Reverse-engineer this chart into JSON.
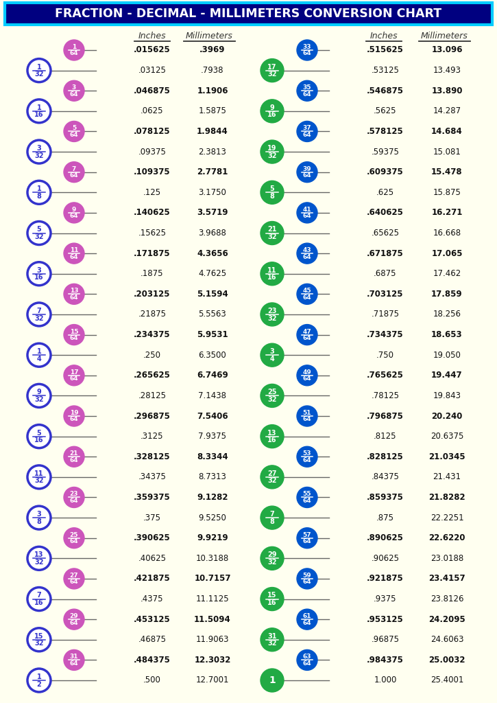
{
  "title": "FRACTION - DECIMAL - MILLIMETERS CONVERSION CHART",
  "title_bg": "#000080",
  "title_fg": "#ffffff",
  "title_border": "#00ccff",
  "bg_color": "#fffff0",
  "left_rows": [
    {
      "num": 1,
      "den": 64,
      "dec": ".015625",
      "mm": ".3969",
      "bold": true,
      "circle64": true
    },
    {
      "num": 1,
      "den": 32,
      "dec": ".03125",
      "mm": ".7938",
      "bold": false,
      "circle64": false
    },
    {
      "num": 3,
      "den": 64,
      "dec": ".046875",
      "mm": "1.1906",
      "bold": true,
      "circle64": true
    },
    {
      "num": 1,
      "den": 16,
      "dec": ".0625",
      "mm": "1.5875",
      "bold": false,
      "circle64": false
    },
    {
      "num": 5,
      "den": 64,
      "dec": ".078125",
      "mm": "1.9844",
      "bold": true,
      "circle64": true
    },
    {
      "num": 3,
      "den": 32,
      "dec": ".09375",
      "mm": "2.3813",
      "bold": false,
      "circle64": false
    },
    {
      "num": 7,
      "den": 64,
      "dec": ".109375",
      "mm": "2.7781",
      "bold": true,
      "circle64": true
    },
    {
      "num": 1,
      "den": 8,
      "dec": ".125",
      "mm": "3.1750",
      "bold": false,
      "circle64": false
    },
    {
      "num": 9,
      "den": 64,
      "dec": ".140625",
      "mm": "3.5719",
      "bold": true,
      "circle64": true
    },
    {
      "num": 5,
      "den": 32,
      "dec": ".15625",
      "mm": "3.9688",
      "bold": false,
      "circle64": false
    },
    {
      "num": 11,
      "den": 64,
      "dec": ".171875",
      "mm": "4.3656",
      "bold": true,
      "circle64": true
    },
    {
      "num": 3,
      "den": 16,
      "dec": ".1875",
      "mm": "4.7625",
      "bold": false,
      "circle64": false
    },
    {
      "num": 13,
      "den": 64,
      "dec": ".203125",
      "mm": "5.1594",
      "bold": true,
      "circle64": true
    },
    {
      "num": 7,
      "den": 32,
      "dec": ".21875",
      "mm": "5.5563",
      "bold": false,
      "circle64": false
    },
    {
      "num": 15,
      "den": 64,
      "dec": ".234375",
      "mm": "5.9531",
      "bold": true,
      "circle64": true
    },
    {
      "num": 1,
      "den": 4,
      "dec": ".250",
      "mm": "6.3500",
      "bold": false,
      "circle64": false
    },
    {
      "num": 17,
      "den": 64,
      "dec": ".265625",
      "mm": "6.7469",
      "bold": true,
      "circle64": true
    },
    {
      "num": 9,
      "den": 32,
      "dec": ".28125",
      "mm": "7.1438",
      "bold": false,
      "circle64": false
    },
    {
      "num": 19,
      "den": 64,
      "dec": ".296875",
      "mm": "7.5406",
      "bold": true,
      "circle64": true
    },
    {
      "num": 5,
      "den": 16,
      "dec": ".3125",
      "mm": "7.9375",
      "bold": false,
      "circle64": false
    },
    {
      "num": 21,
      "den": 64,
      "dec": ".328125",
      "mm": "8.3344",
      "bold": true,
      "circle64": true
    },
    {
      "num": 11,
      "den": 32,
      "dec": ".34375",
      "mm": "8.7313",
      "bold": false,
      "circle64": false
    },
    {
      "num": 23,
      "den": 64,
      "dec": ".359375",
      "mm": "9.1282",
      "bold": true,
      "circle64": true
    },
    {
      "num": 3,
      "den": 8,
      "dec": ".375",
      "mm": "9.5250",
      "bold": false,
      "circle64": false
    },
    {
      "num": 25,
      "den": 64,
      "dec": ".390625",
      "mm": "9.9219",
      "bold": true,
      "circle64": true
    },
    {
      "num": 13,
      "den": 32,
      "dec": ".40625",
      "mm": "10.3188",
      "bold": false,
      "circle64": false
    },
    {
      "num": 27,
      "den": 64,
      "dec": ".421875",
      "mm": "10.7157",
      "bold": true,
      "circle64": true
    },
    {
      "num": 7,
      "den": 16,
      "dec": ".4375",
      "mm": "11.1125",
      "bold": false,
      "circle64": false
    },
    {
      "num": 29,
      "den": 64,
      "dec": ".453125",
      "mm": "11.5094",
      "bold": true,
      "circle64": true
    },
    {
      "num": 15,
      "den": 32,
      "dec": ".46875",
      "mm": "11.9063",
      "bold": false,
      "circle64": false
    },
    {
      "num": 31,
      "den": 64,
      "dec": ".484375",
      "mm": "12.3032",
      "bold": true,
      "circle64": true
    },
    {
      "num": 1,
      "den": 2,
      "dec": ".500",
      "mm": "12.7001",
      "bold": false,
      "circle64": false
    }
  ],
  "right_rows": [
    {
      "num": 33,
      "den": 64,
      "dec": ".515625",
      "mm": "13.096",
      "bold": true,
      "circle64": true
    },
    {
      "num": 17,
      "den": 32,
      "dec": ".53125",
      "mm": "13.493",
      "bold": false,
      "circle64": false
    },
    {
      "num": 35,
      "den": 64,
      "dec": ".546875",
      "mm": "13.890",
      "bold": true,
      "circle64": true
    },
    {
      "num": 9,
      "den": 16,
      "dec": ".5625",
      "mm": "14.287",
      "bold": false,
      "circle64": false
    },
    {
      "num": 37,
      "den": 64,
      "dec": ".578125",
      "mm": "14.684",
      "bold": true,
      "circle64": true
    },
    {
      "num": 19,
      "den": 32,
      "dec": ".59375",
      "mm": "15.081",
      "bold": false,
      "circle64": false
    },
    {
      "num": 39,
      "den": 64,
      "dec": ".609375",
      "mm": "15.478",
      "bold": true,
      "circle64": true
    },
    {
      "num": 5,
      "den": 8,
      "dec": ".625",
      "mm": "15.875",
      "bold": false,
      "circle64": false
    },
    {
      "num": 41,
      "den": 64,
      "dec": ".640625",
      "mm": "16.271",
      "bold": true,
      "circle64": true
    },
    {
      "num": 21,
      "den": 32,
      "dec": ".65625",
      "mm": "16.668",
      "bold": false,
      "circle64": false
    },
    {
      "num": 43,
      "den": 64,
      "dec": ".671875",
      "mm": "17.065",
      "bold": true,
      "circle64": true
    },
    {
      "num": 11,
      "den": 16,
      "dec": ".6875",
      "mm": "17.462",
      "bold": false,
      "circle64": false
    },
    {
      "num": 45,
      "den": 64,
      "dec": ".703125",
      "mm": "17.859",
      "bold": true,
      "circle64": true
    },
    {
      "num": 23,
      "den": 32,
      "dec": ".71875",
      "mm": "18.256",
      "bold": false,
      "circle64": false
    },
    {
      "num": 47,
      "den": 64,
      "dec": ".734375",
      "mm": "18.653",
      "bold": true,
      "circle64": true
    },
    {
      "num": 3,
      "den": 4,
      "dec": ".750",
      "mm": "19.050",
      "bold": false,
      "circle64": false
    },
    {
      "num": 49,
      "den": 64,
      "dec": ".765625",
      "mm": "19.447",
      "bold": true,
      "circle64": true
    },
    {
      "num": 25,
      "den": 32,
      "dec": ".78125",
      "mm": "19.843",
      "bold": false,
      "circle64": false
    },
    {
      "num": 51,
      "den": 64,
      "dec": ".796875",
      "mm": "20.240",
      "bold": true,
      "circle64": true
    },
    {
      "num": 13,
      "den": 16,
      "dec": ".8125",
      "mm": "20.6375",
      "bold": false,
      "circle64": false
    },
    {
      "num": 53,
      "den": 64,
      "dec": ".828125",
      "mm": "21.0345",
      "bold": true,
      "circle64": true
    },
    {
      "num": 27,
      "den": 32,
      "dec": ".84375",
      "mm": "21.431",
      "bold": false,
      "circle64": false
    },
    {
      "num": 55,
      "den": 64,
      "dec": ".859375",
      "mm": "21.8282",
      "bold": true,
      "circle64": true
    },
    {
      "num": 7,
      "den": 8,
      "dec": ".875",
      "mm": "22.2251",
      "bold": false,
      "circle64": false
    },
    {
      "num": 57,
      "den": 64,
      "dec": ".890625",
      "mm": "22.6220",
      "bold": true,
      "circle64": true
    },
    {
      "num": 29,
      "den": 32,
      "dec": ".90625",
      "mm": "23.0188",
      "bold": false,
      "circle64": false
    },
    {
      "num": 59,
      "den": 64,
      "dec": ".921875",
      "mm": "23.4157",
      "bold": true,
      "circle64": true
    },
    {
      "num": 15,
      "den": 16,
      "dec": ".9375",
      "mm": "23.8126",
      "bold": false,
      "circle64": false
    },
    {
      "num": 61,
      "den": 64,
      "dec": ".953125",
      "mm": "24.2095",
      "bold": true,
      "circle64": true
    },
    {
      "num": 31,
      "den": 32,
      "dec": ".96875",
      "mm": "24.6063",
      "bold": false,
      "circle64": false
    },
    {
      "num": 63,
      "den": 64,
      "dec": ".984375",
      "mm": "25.0032",
      "bold": true,
      "circle64": true
    },
    {
      "num": 1,
      "den": 1,
      "dec": "1.000",
      "mm": "25.4001",
      "bold": false,
      "circle64": false
    }
  ],
  "left_c64_color": "#cc55bb",
  "left_c64_outline": "#dd44cc",
  "left_cother_color": "#ffffff",
  "left_cother_outline": "#3333cc",
  "right_c64_color": "#0055cc",
  "right_cother_color": "#22aa44",
  "text_color": "#111111",
  "line_color": "#666666",
  "header_color": "#333333"
}
